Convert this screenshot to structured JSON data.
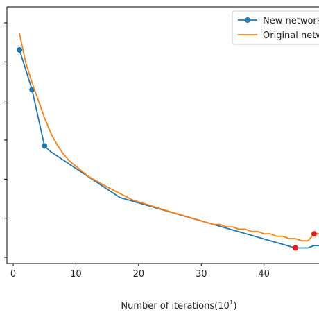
{
  "chart_data": {
    "type": "line",
    "title": "",
    "xlabel": "Number of iterations(10",
    "xlabel_sup": "1",
    "xlabel_tail": ")",
    "ylabel": "",
    "xlim": [
      -1,
      49
    ],
    "ylim": [
      0,
      1
    ],
    "x_ticks": [
      0,
      10,
      20,
      30,
      40
    ],
    "x_tick_labels": [
      "0",
      "10",
      "20",
      "30",
      "40"
    ],
    "y_tick_count": 7,
    "legend": {
      "position": "top-right"
    },
    "series": [
      {
        "name": "New network",
        "color": "#1f77b4",
        "marker": "circle",
        "marker_x": [
          1,
          3,
          5
        ],
        "points": [
          [
            1,
            0.885
          ],
          [
            3,
            0.715
          ],
          [
            5,
            0.475
          ],
          [
            6,
            0.45
          ],
          [
            17,
            0.255
          ],
          [
            45,
            0.04
          ],
          [
            47,
            0.04
          ],
          [
            48,
            0.05
          ],
          [
            49,
            0.05
          ]
        ]
      },
      {
        "name": "Original network",
        "color": "#ff7f0e",
        "marker": "none",
        "points": [
          [
            1,
            0.955
          ],
          [
            2,
            0.83
          ],
          [
            3,
            0.745
          ],
          [
            4,
            0.67
          ],
          [
            5,
            0.595
          ],
          [
            6,
            0.53
          ],
          [
            7,
            0.48
          ],
          [
            8,
            0.44
          ],
          [
            9,
            0.41
          ],
          [
            12,
            0.345
          ],
          [
            15,
            0.3
          ],
          [
            19,
            0.245
          ],
          [
            25,
            0.195
          ],
          [
            32,
            0.14
          ],
          [
            33,
            0.14
          ],
          [
            34,
            0.13
          ],
          [
            35,
            0.13
          ],
          [
            36,
            0.12
          ],
          [
            37,
            0.12
          ],
          [
            38,
            0.11
          ],
          [
            39,
            0.11
          ],
          [
            40,
            0.1
          ],
          [
            41,
            0.1
          ],
          [
            42,
            0.09
          ],
          [
            43,
            0.09
          ],
          [
            44,
            0.08
          ],
          [
            45,
            0.08
          ],
          [
            46,
            0.07
          ],
          [
            47,
            0.07
          ],
          [
            48,
            0.1
          ],
          [
            49,
            0.1
          ]
        ]
      }
    ],
    "highlight_points": {
      "color": "#e41a1c",
      "points": [
        [
          45,
          0.04
        ],
        [
          48,
          0.1
        ]
      ]
    }
  }
}
